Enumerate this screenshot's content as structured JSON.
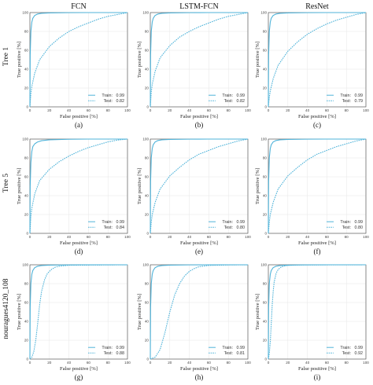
{
  "figure": {
    "column_titles": [
      "FCN",
      "LSTM-FCN",
      "ResNet"
    ],
    "row_labels": [
      "Tree 1",
      "Tree 5",
      "nouragues4120_108"
    ],
    "line_color": "#4fb3d9"
  },
  "chart_data": [
    {
      "type": "line",
      "panel": "(a)",
      "row": "Tree 1",
      "model": "FCN",
      "xlabel": "False positive [%]",
      "ylabel": "True positive [%]",
      "xlim": [
        0,
        100
      ],
      "ylim": [
        0,
        100
      ],
      "xticks": [
        0,
        20,
        40,
        60,
        80,
        100
      ],
      "yticks": [
        0,
        20,
        40,
        60,
        80,
        100
      ],
      "grid": true,
      "legend_position": "bottom-right",
      "series": [
        {
          "name": "Train",
          "style": "solid",
          "auc": "0.99",
          "x": [
            0,
            0.3,
            1,
            2,
            3,
            5,
            8,
            12,
            20,
            40,
            60,
            100
          ],
          "y": [
            0,
            55,
            80,
            90,
            94,
            97,
            98.5,
            99.2,
            99.6,
            99.9,
            100,
            100
          ]
        },
        {
          "name": "Test",
          "style": "dashed",
          "auc": "0.82",
          "x": [
            0,
            1,
            2,
            5,
            10,
            20,
            30,
            40,
            50,
            60,
            70,
            80,
            90,
            100
          ],
          "y": [
            0,
            14,
            22,
            36,
            50,
            64,
            73,
            80,
            85,
            89,
            93,
            96,
            98,
            100
          ]
        }
      ]
    },
    {
      "type": "line",
      "panel": "(b)",
      "row": "Tree 1",
      "model": "LSTM-FCN",
      "xlabel": "False positive [%]",
      "ylabel": "True positive [%]",
      "xlim": [
        0,
        100
      ],
      "ylim": [
        0,
        100
      ],
      "xticks": [
        0,
        20,
        40,
        60,
        80,
        100
      ],
      "yticks": [
        0,
        20,
        40,
        60,
        80,
        100
      ],
      "grid": true,
      "legend_position": "bottom-right",
      "series": [
        {
          "name": "Train",
          "style": "solid",
          "auc": "0.99",
          "x": [
            0,
            0.3,
            1,
            2,
            3,
            5,
            8,
            12,
            20,
            40,
            60,
            100
          ],
          "y": [
            0,
            55,
            80,
            90,
            94,
            97,
            98.5,
            99.2,
            99.6,
            99.9,
            100,
            100
          ]
        },
        {
          "name": "Test",
          "style": "dashed",
          "auc": "0.82",
          "x": [
            0,
            1,
            2,
            5,
            10,
            20,
            30,
            40,
            50,
            60,
            70,
            80,
            90,
            100
          ],
          "y": [
            0,
            16,
            24,
            38,
            52,
            65,
            74,
            80,
            85,
            89,
            93,
            96,
            98,
            100
          ]
        }
      ]
    },
    {
      "type": "line",
      "panel": "(c)",
      "row": "Tree 1",
      "model": "ResNet",
      "xlabel": "False positive [%]",
      "ylabel": "True positive [%]",
      "xlim": [
        0,
        100
      ],
      "ylim": [
        0,
        100
      ],
      "xticks": [
        0,
        20,
        40,
        60,
        80,
        100
      ],
      "yticks": [
        0,
        20,
        40,
        60,
        80,
        100
      ],
      "grid": true,
      "legend_position": "bottom-right",
      "series": [
        {
          "name": "Train",
          "style": "solid",
          "auc": "0.99",
          "x": [
            0,
            0.3,
            1,
            2,
            3,
            5,
            8,
            12,
            20,
            40,
            60,
            100
          ],
          "y": [
            0,
            55,
            80,
            90,
            94,
            97,
            98.5,
            99.2,
            99.6,
            99.9,
            100,
            100
          ]
        },
        {
          "name": "Test",
          "style": "dashed",
          "auc": "0.79",
          "x": [
            0,
            1,
            2,
            5,
            10,
            20,
            30,
            40,
            50,
            60,
            70,
            80,
            90,
            100
          ],
          "y": [
            0,
            10,
            17,
            30,
            44,
            59,
            69,
            77,
            83,
            88,
            92,
            95,
            98,
            100
          ]
        }
      ]
    },
    {
      "type": "line",
      "panel": "(d)",
      "row": "Tree 5",
      "model": "FCN",
      "xlabel": "False positive [%]",
      "ylabel": "True positive [%]",
      "xlim": [
        0,
        100
      ],
      "ylim": [
        0,
        100
      ],
      "xticks": [
        0,
        20,
        40,
        60,
        80,
        100
      ],
      "yticks": [
        0,
        20,
        40,
        60,
        80,
        100
      ],
      "grid": true,
      "legend_position": "bottom-right",
      "series": [
        {
          "name": "Train",
          "style": "solid",
          "auc": "0.99",
          "x": [
            0,
            0.3,
            1,
            2,
            3,
            5,
            8,
            12,
            20,
            40,
            60,
            100
          ],
          "y": [
            0,
            50,
            75,
            87,
            92,
            95,
            97,
            98.3,
            99.2,
            99.8,
            100,
            100
          ]
        },
        {
          "name": "Test",
          "style": "dashed",
          "auc": "0.84",
          "x": [
            0,
            1,
            2,
            5,
            10,
            20,
            30,
            40,
            50,
            60,
            70,
            80,
            90,
            100
          ],
          "y": [
            0,
            18,
            27,
            42,
            56,
            68,
            76,
            82,
            87,
            91,
            94,
            97,
            99,
            100
          ]
        }
      ]
    },
    {
      "type": "line",
      "panel": "(e)",
      "row": "Tree 5",
      "model": "LSTM-FCN",
      "xlabel": "False positive [%]",
      "ylabel": "True positive [%]",
      "xlim": [
        0,
        100
      ],
      "ylim": [
        0,
        100
      ],
      "xticks": [
        0,
        20,
        40,
        60,
        80,
        100
      ],
      "yticks": [
        0,
        20,
        40,
        60,
        80,
        100
      ],
      "grid": true,
      "legend_position": "bottom-right",
      "series": [
        {
          "name": "Train",
          "style": "solid",
          "auc": "0.99",
          "x": [
            0,
            0.3,
            1,
            2,
            3,
            5,
            8,
            12,
            20,
            40,
            60,
            100
          ],
          "y": [
            0,
            55,
            80,
            90,
            94,
            97,
            98.5,
            99.2,
            99.6,
            99.9,
            100,
            100
          ]
        },
        {
          "name": "Test",
          "style": "dashed",
          "auc": "0.80",
          "x": [
            0,
            1,
            2,
            5,
            10,
            20,
            30,
            40,
            50,
            60,
            70,
            80,
            90,
            100
          ],
          "y": [
            0,
            12,
            20,
            33,
            47,
            61,
            70,
            78,
            84,
            88,
            92,
            95,
            98,
            100
          ]
        }
      ]
    },
    {
      "type": "line",
      "panel": "(f)",
      "row": "Tree 5",
      "model": "ResNet",
      "xlabel": "False positive [%]",
      "ylabel": "True positive [%]",
      "xlim": [
        0,
        100
      ],
      "ylim": [
        0,
        100
      ],
      "xticks": [
        0,
        20,
        40,
        60,
        80,
        100
      ],
      "yticks": [
        0,
        20,
        40,
        60,
        80,
        100
      ],
      "grid": true,
      "legend_position": "bottom-right",
      "series": [
        {
          "name": "Train",
          "style": "solid",
          "auc": "0.99",
          "x": [
            0,
            0.3,
            1,
            2,
            3,
            5,
            8,
            12,
            20,
            40,
            60,
            100
          ],
          "y": [
            0,
            55,
            80,
            90,
            94,
            97,
            98.5,
            99.2,
            99.6,
            99.9,
            100,
            100
          ]
        },
        {
          "name": "Test",
          "style": "dashed",
          "auc": "0.80",
          "x": [
            0,
            1,
            2,
            5,
            10,
            20,
            30,
            40,
            50,
            60,
            70,
            80,
            90,
            100
          ],
          "y": [
            0,
            12,
            20,
            33,
            47,
            61,
            70,
            78,
            84,
            88,
            92,
            95,
            98,
            100
          ]
        }
      ]
    },
    {
      "type": "line",
      "panel": "(g)",
      "row": "nouragues4120_108",
      "model": "FCN",
      "xlabel": "False positive [%]",
      "ylabel": "True positive [%]",
      "xlim": [
        0,
        100
      ],
      "ylim": [
        0,
        100
      ],
      "xticks": [
        0,
        20,
        40,
        60,
        80,
        100
      ],
      "yticks": [
        0,
        20,
        40,
        60,
        80,
        100
      ],
      "grid": true,
      "legend_position": "bottom-right",
      "series": [
        {
          "name": "Train",
          "style": "solid",
          "auc": "0.99",
          "x": [
            0,
            0.3,
            1,
            2,
            3,
            5,
            8,
            12,
            20,
            40,
            60,
            100
          ],
          "y": [
            0,
            55,
            80,
            90,
            94,
            97,
            98.5,
            99.2,
            99.6,
            99.9,
            100,
            100
          ]
        },
        {
          "name": "Test",
          "style": "dashed",
          "auc": "0.88",
          "x": [
            0,
            2,
            4,
            6,
            8,
            10,
            12,
            15,
            18,
            22,
            26,
            30,
            40,
            100
          ],
          "y": [
            0,
            2,
            8,
            20,
            38,
            58,
            72,
            84,
            91,
            95,
            97.5,
            98.5,
            99.5,
            100
          ]
        }
      ]
    },
    {
      "type": "line",
      "panel": "(h)",
      "row": "nouragues4120_108",
      "model": "LSTM-FCN",
      "xlabel": "False positive [%]",
      "ylabel": "True positive [%]",
      "xlim": [
        0,
        100
      ],
      "ylim": [
        0,
        100
      ],
      "xticks": [
        0,
        20,
        40,
        60,
        80,
        100
      ],
      "yticks": [
        0,
        20,
        40,
        60,
        80,
        100
      ],
      "grid": true,
      "legend_position": "bottom-right",
      "series": [
        {
          "name": "Train",
          "style": "solid",
          "auc": "0.99",
          "x": [
            0,
            0.3,
            1,
            2,
            3,
            5,
            8,
            12,
            20,
            40,
            60,
            100
          ],
          "y": [
            0,
            55,
            80,
            90,
            94,
            97,
            98.5,
            99.2,
            99.6,
            99.9,
            100,
            100
          ]
        },
        {
          "name": "Test",
          "style": "dashed",
          "auc": "0.81",
          "x": [
            0,
            5,
            10,
            15,
            20,
            25,
            30,
            35,
            40,
            45,
            50,
            60,
            80,
            100
          ],
          "y": [
            0,
            2,
            10,
            28,
            50,
            68,
            80,
            88,
            93,
            96,
            98,
            99.3,
            99.8,
            100
          ]
        }
      ]
    },
    {
      "type": "line",
      "panel": "(i)",
      "row": "nouragues4120_108",
      "model": "ResNet",
      "xlabel": "False positive [%]",
      "ylabel": "True positive [%]",
      "xlim": [
        0,
        100
      ],
      "ylim": [
        0,
        100
      ],
      "xticks": [
        0,
        20,
        40,
        60,
        80,
        100
      ],
      "yticks": [
        0,
        20,
        40,
        60,
        80,
        100
      ],
      "grid": true,
      "legend_position": "bottom-right",
      "series": [
        {
          "name": "Train",
          "style": "solid",
          "auc": "0.99",
          "x": [
            0,
            0.3,
            1,
            2,
            3,
            5,
            8,
            12,
            20,
            40,
            60,
            100
          ],
          "y": [
            0,
            55,
            80,
            90,
            94,
            97,
            98.5,
            99.2,
            99.6,
            99.9,
            100,
            100
          ]
        },
        {
          "name": "Test",
          "style": "dashed",
          "auc": "0.92",
          "x": [
            0,
            1,
            2,
            3,
            4,
            5,
            6,
            8,
            10,
            13,
            16,
            20,
            30,
            100
          ],
          "y": [
            0,
            6,
            18,
            38,
            58,
            72,
            82,
            91,
            95,
            97.5,
            98.7,
            99.3,
            99.8,
            100
          ]
        }
      ]
    }
  ]
}
